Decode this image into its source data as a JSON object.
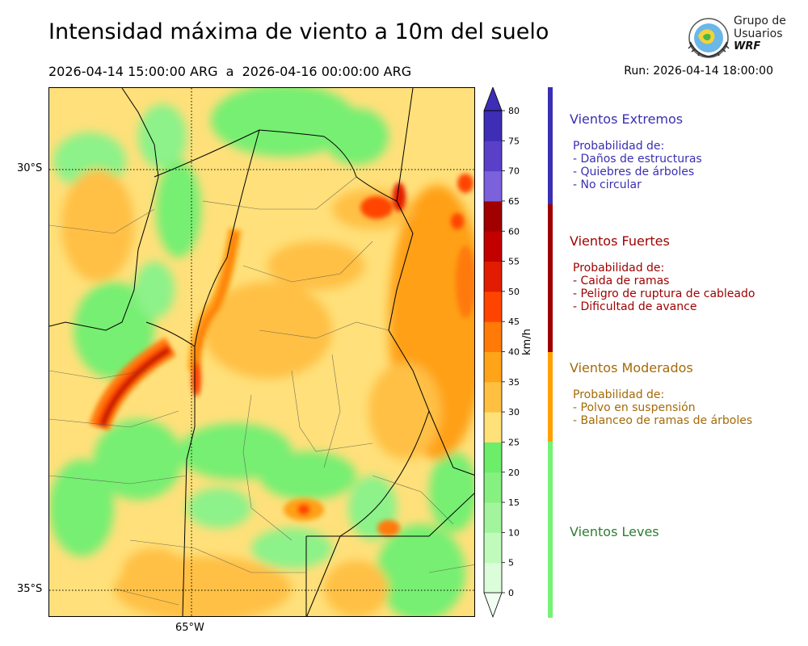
{
  "title": "Intensidad máxima de viento a 10m del suelo",
  "period": "2026-04-14 15:00:00 ARG  a  2026-04-16 00:00:00 ARG",
  "run": "Run: 2026-04-14 18:00:00",
  "logo": {
    "line1": "Grupo de",
    "line2": "Usuarios",
    "line3": "WRF"
  },
  "map": {
    "lat_labels": [
      "30°S",
      "35°S"
    ],
    "lon_labels": [
      "65°W"
    ]
  },
  "colorbar": {
    "units": "km/h",
    "ticks": [
      "0",
      "5",
      "10",
      "15",
      "20",
      "25",
      "30",
      "35",
      "40",
      "45",
      "50",
      "55",
      "60",
      "65",
      "70",
      "75",
      "80"
    ],
    "colors": [
      "#f2fef2",
      "#dbfdd9",
      "#c0fbbc",
      "#a3f59d",
      "#86f181",
      "#6cee6a",
      "#ffe17a",
      "#ffc042",
      "#ffa319",
      "#ff7a07",
      "#ff4400",
      "#e21c00",
      "#c30000",
      "#a10000",
      "#7b61dc",
      "#5a3fc9",
      "#3e2db5"
    ],
    "extend": "both"
  },
  "legend": [
    {
      "title": "Vientos Extremos",
      "color": "#3a2fb2",
      "lines": [
        "Probabilidad de:",
        "- Daños de estructuras",
        "- Quiebres de árboles",
        "- No circular"
      ]
    },
    {
      "title": "Vientos Fuertes",
      "color": "#9e0000",
      "lines": [
        "Probabilidad de:",
        "- Caida de ramas",
        "- Peligro de ruptura de cableado",
        "- Dificultad de avance"
      ]
    },
    {
      "title": "Vientos Moderados",
      "color": "#a56a08",
      "bar_color": "#ffa000",
      "lines": [
        "Probabilidad de:",
        "- Polvo en suspensión",
        "- Balanceo de ramas de árboles"
      ]
    },
    {
      "title": "Vientos Leves",
      "color": "#2e7d32",
      "bar_color": "#76f274",
      "lines": []
    }
  ]
}
